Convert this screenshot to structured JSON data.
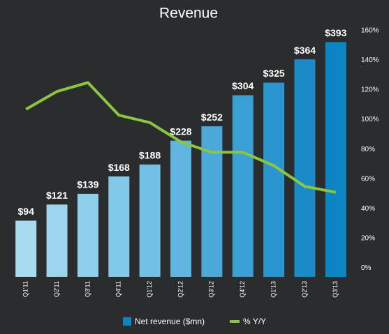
{
  "chart_data": {
    "type": "bar",
    "title": "Revenue",
    "categories": [
      "Q1'11",
      "Q2'11",
      "Q3'11",
      "Q4'11",
      "Q1'12",
      "Q2'12",
      "Q3'12",
      "Q4'12",
      "Q1'13",
      "Q2'13",
      "Q3'13"
    ],
    "series": [
      {
        "name": "Net revenue ($mn)",
        "type": "bar",
        "colors": [
          "#a8dbf0",
          "#9dd5ee",
          "#90cfeb",
          "#82c8e8",
          "#72c0e4",
          "#5fb5df",
          "#4aa9d9",
          "#3a9fd4",
          "#2a95ce",
          "#1a8bc8",
          "#0d84c3"
        ],
        "values": [
          94,
          121,
          139,
          168,
          188,
          228,
          252,
          304,
          325,
          364,
          393
        ],
        "value_labels": [
          "$94",
          "$121",
          "$139",
          "$168",
          "$188",
          "$228",
          "$252",
          "$304",
          "$325",
          "$364",
          "$393"
        ]
      },
      {
        "name": "% Y/Y",
        "type": "line",
        "color": "#8cc63f",
        "axis": "y2",
        "values": [
          107,
          119,
          125,
          103,
          98,
          85,
          78,
          78,
          69,
          55,
          51
        ]
      }
    ],
    "ylim": [
      0,
      412
    ],
    "y2lim": [
      -6,
      160
    ],
    "y2ticks": [
      {
        "value": 0,
        "label": "0%"
      },
      {
        "value": 20,
        "label": "20%"
      },
      {
        "value": 40,
        "label": "40%"
      },
      {
        "value": 60,
        "label": "60%"
      },
      {
        "value": 80,
        "label": "80%"
      },
      {
        "value": 100,
        "label": "100%"
      },
      {
        "value": 120,
        "label": "120%"
      },
      {
        "value": 140,
        "label": "140%"
      },
      {
        "value": 160,
        "label": "160%"
      }
    ]
  }
}
